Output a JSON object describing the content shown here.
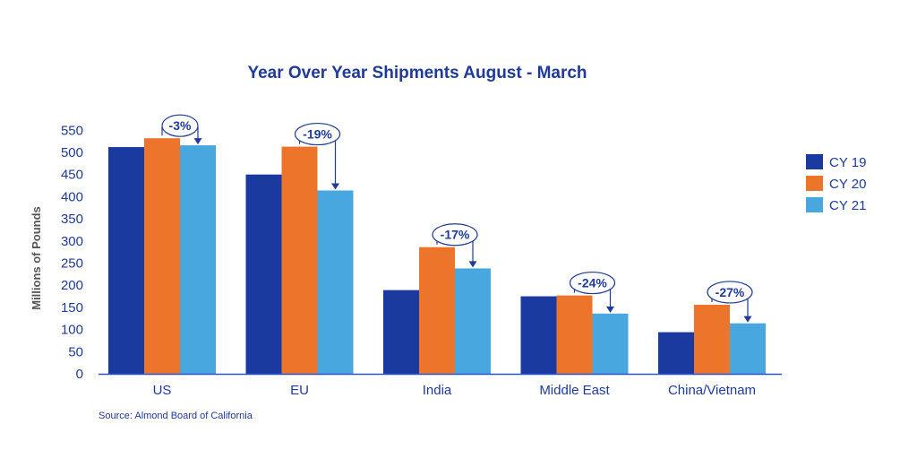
{
  "colors": {
    "title": "#1f3a9a",
    "axis_text": "#1f3a9a",
    "axis_line": "#2b56c9",
    "cy19": "#1a3a9f",
    "cy20": "#ec752b",
    "cy21": "#49a7df",
    "annotation": "#1f3a9a"
  },
  "chart_data": {
    "type": "bar",
    "title": "Year Over Year Shipments August - March",
    "xlabel": "",
    "ylabel": "Millions of Pounds",
    "ylim": [
      0,
      550
    ],
    "yticks": [
      0,
      50,
      100,
      150,
      200,
      250,
      300,
      350,
      400,
      450,
      500,
      550
    ],
    "grid": false,
    "legend_position": "right",
    "categories": [
      "US",
      "EU",
      "India",
      "Middle East",
      "China/Vietnam"
    ],
    "series": [
      {
        "name": "CY 19",
        "values": [
          512,
          450,
          189,
          175,
          94
        ]
      },
      {
        "name": "CY 20",
        "values": [
          532,
          513,
          286,
          177,
          156
        ]
      },
      {
        "name": "CY 21",
        "values": [
          516,
          414,
          238,
          136,
          114
        ]
      }
    ],
    "annotations": [
      "-3%",
      "-19%",
      "-17%",
      "-24%",
      "-27%"
    ],
    "source": "Source: Almond Board of California"
  }
}
